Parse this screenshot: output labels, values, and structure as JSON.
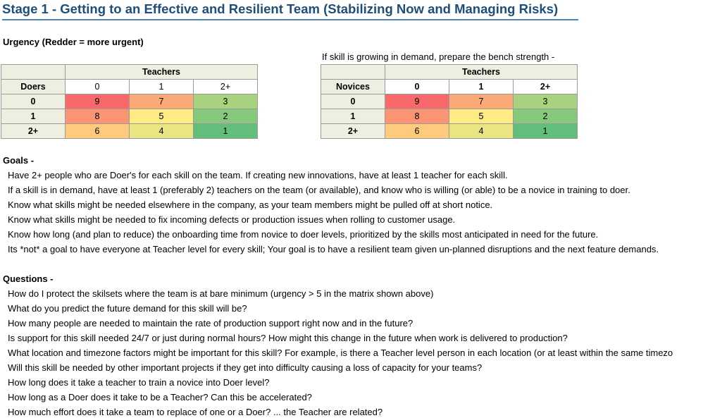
{
  "title": "Stage 1 - Getting to an Effective and Resilient Team (Stabilizing Now and Managing Risks)",
  "urgency_label": "Urgency (Redder = more urgent)",
  "bench_note": "If skill is growing in demand, prepare the bench strength -",
  "matrix_left": {
    "group_header": "Teachers",
    "row_header": "Doers",
    "col_labels": [
      "0",
      "1",
      "2+"
    ],
    "rows": [
      {
        "label": "0",
        "values": [
          "9",
          "7",
          "3"
        ]
      },
      {
        "label": "1",
        "values": [
          "8",
          "5",
          "2"
        ]
      },
      {
        "label": "2+",
        "values": [
          "6",
          "4",
          "1"
        ]
      }
    ]
  },
  "matrix_right": {
    "group_header": "Teachers",
    "row_header": "Novices",
    "col_labels": [
      "0",
      "1",
      "2+"
    ],
    "rows": [
      {
        "label": "0",
        "values": [
          "9",
          "7",
          "3"
        ]
      },
      {
        "label": "1",
        "values": [
          "8",
          "5",
          "2"
        ]
      },
      {
        "label": "2+",
        "values": [
          "6",
          "4",
          "1"
        ]
      }
    ]
  },
  "urgency_colors": {
    "9": "#f8696b",
    "8": "#fa9473",
    "7": "#fbaa77",
    "6": "#fecb7e",
    "5": "#ffeb84",
    "4": "#e9e583",
    "3": "#a9d27f",
    "2": "#86c97d",
    "1": "#63be7b"
  },
  "goals": {
    "heading": "Goals -",
    "items": [
      "Have 2+ people who are Doer's for each skill on the team. If creating new innovations, have at least 1 teacher for each skill.",
      "If a skill is in demand, have at least 1 (preferably 2) teachers on the team (or available), and know who is willing (or able) to be a novice in training to doer.",
      "Know what skills might be needed elsewhere in the company, as your team members might be pulled off at short notice.",
      "Know what skills might be needed to fix incoming defects or production issues when rolling to customer usage.",
      "Know how long (and plan to reduce) the onboarding time from novice to doer levels, prioritized by the skills most anticipated in need for the future.",
      "Its *not* a goal to have everyone at Teacher level for every skill; Your goal is to have a resilient team given un-planned disruptions and the next feature demands."
    ]
  },
  "questions": {
    "heading": "Questions -",
    "items": [
      "How do I protect the skilsets where the team is at bare minimum (urgency > 5 in the matrix shown above)",
      "What do you predict the future demand for this skill will be?",
      "How many people are needed to maintain the rate of production support right now and in the future?",
      "Is support for this skill needed 24/7 or just during normal hours? How might this change in the future when work is delivered to production?",
      "What location and timezone factors might be important for this skill? For example, is there a Teacher level person in each location (or at least within the same timezo",
      "Will this skill be needed by other important projects if they get into difficulty causing a loss of capacity for your teams?",
      "How long does it take a teacher to train a novice into Doer level?",
      "How long as a Doer does it take to be a Teacher? Can this be accelerated?",
      "How much effort does it take a team to replace of one or a Doer? ... the Teacher are related?"
    ]
  }
}
